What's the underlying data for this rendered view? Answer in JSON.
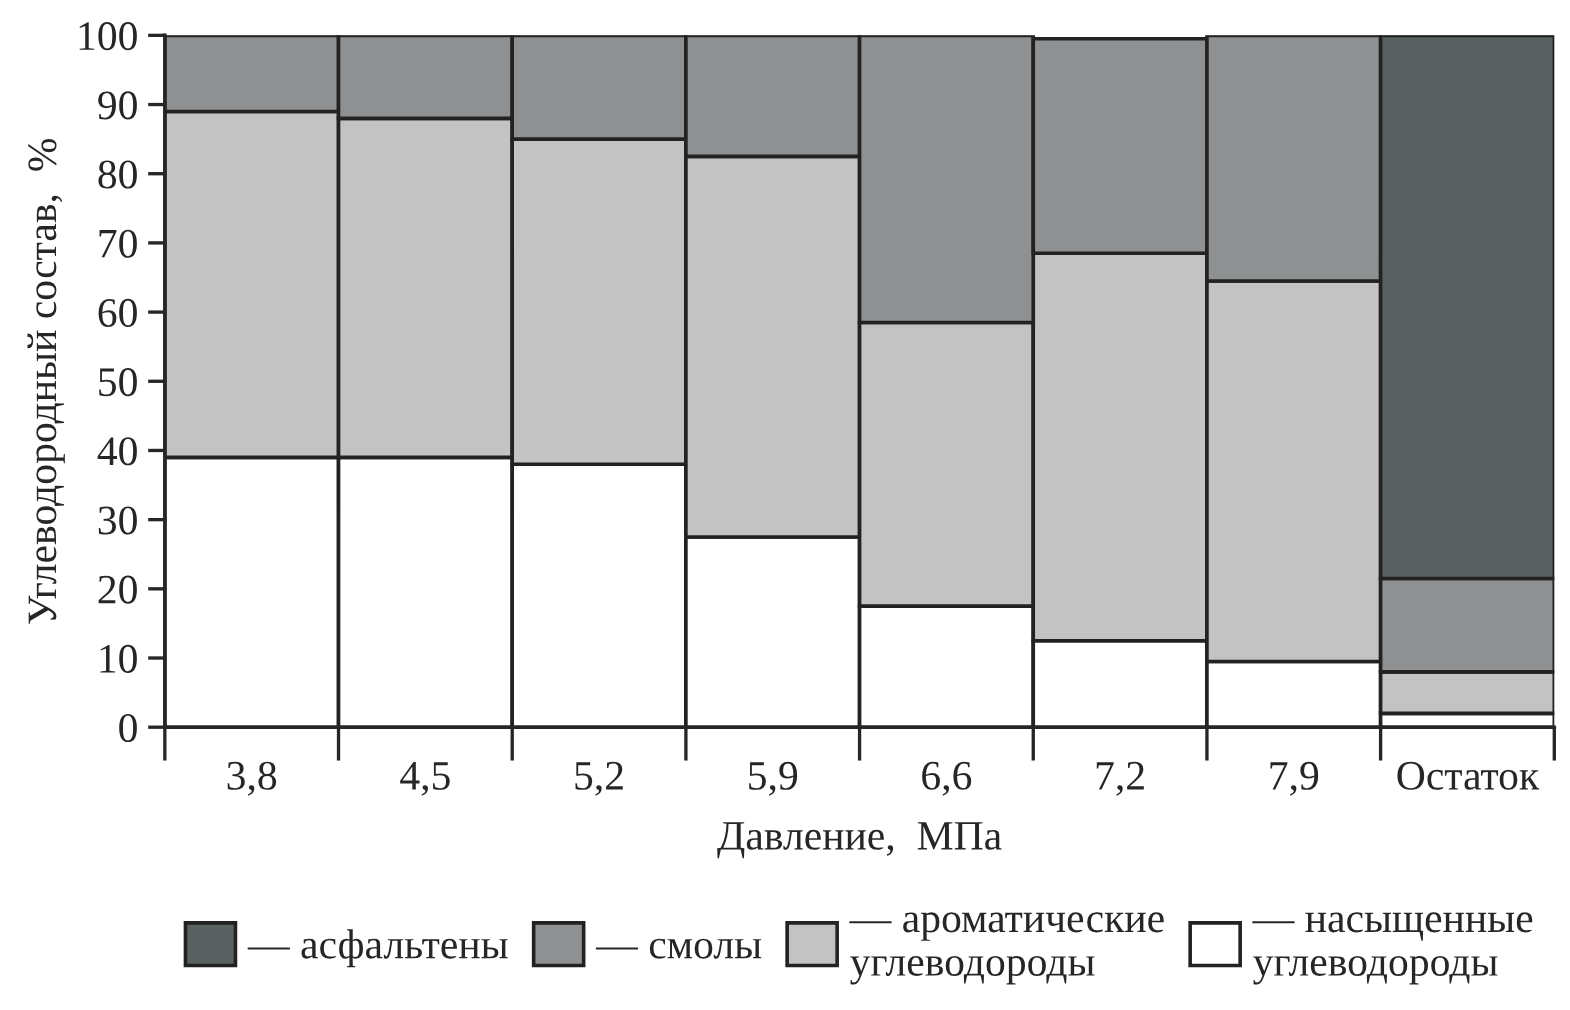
{
  "chart_data": {
    "type": "bar",
    "stacked": true,
    "xlabel": "Давление,  МПа",
    "ylabel": "Углеводородный состав,  %",
    "categories": [
      "3,8",
      "4,5",
      "5,2",
      "5,9",
      "6,6",
      "7,2",
      "7,9",
      "Остаток"
    ],
    "series": [
      {
        "name": "— насыщенные\nуглеводороды",
        "color": "#ffffff",
        "values": [
          39,
          39,
          38,
          27.5,
          17.5,
          12.5,
          9.5,
          2
        ]
      },
      {
        "name": "— ароматические\nуглеводороды",
        "color": "#c3c3c3",
        "values": [
          50,
          49,
          47,
          55,
          41,
          56,
          55,
          6
        ]
      },
      {
        "name": "— смолы",
        "color": "#8f9092",
        "values": [
          11,
          12,
          15,
          17.5,
          41.5,
          31,
          35.5,
          13.5
        ]
      },
      {
        "name": "— асфальтены",
        "color": "#58615f",
        "values": [
          null,
          null,
          null,
          null,
          null,
          null,
          null,
          78.5
        ]
      }
    ],
    "ylim": [
      0,
      100
    ],
    "yticks": [
      0,
      10,
      20,
      30,
      40,
      50,
      60,
      70,
      80,
      90,
      100
    ],
    "grid": false,
    "legend": "bottom"
  }
}
